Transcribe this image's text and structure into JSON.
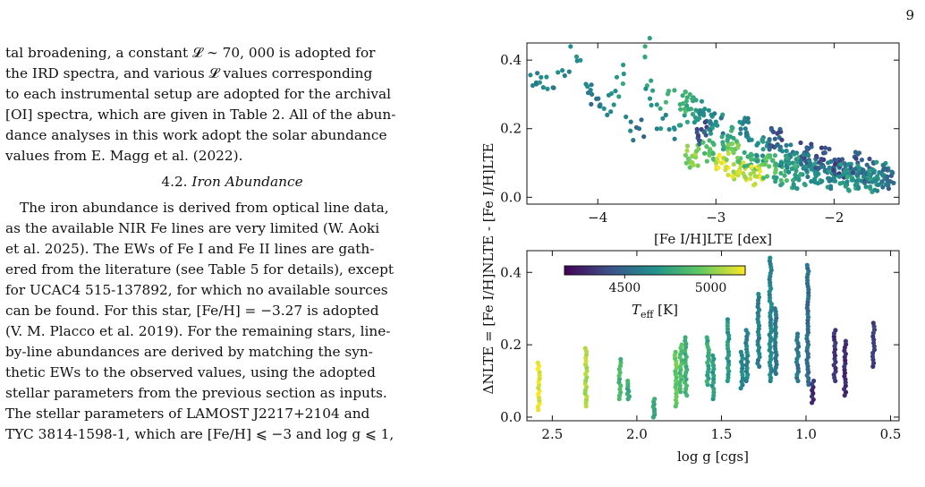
{
  "page_number": "9",
  "text": {
    "p1_lines": [
      "tal broadening, a constant 𝓛 ∼ 70, 000 is adopted for",
      "the IRD spectra, and various 𝓛 values corresponding",
      "to each instrumental setup are adopted for the archival",
      "[OI] spectra, which are given in Table 2. All of the abun-",
      "dance analyses in this work adopt the solar abundance",
      "values from E. Magg et al. (2022)."
    ],
    "section_number": "4.2.",
    "section_title": "Iron Abundance",
    "p2_lines": [
      "The iron abundance is derived from optical line data,",
      "as the available NIR Fe lines are very limited (W. Aoki",
      "et al. 2025). The EWs of Fe I and Fe II lines are gath-",
      "ered from the literature (see Table 5 for details), except",
      "for UCAC4 515-137892, for which no available sources",
      "can be found. For this star, [Fe/H] = −3.27 is adopted",
      "(V. M. Placco et al. 2019). For the remaining stars, line-",
      "by-line abundances are derived by matching the syn-",
      "thetic EWs to the observed values, using the adopted",
      "stellar parameters from the previous section as inputs.",
      "The stellar parameters of LAMOST J2217+2104 and",
      "TYC 3814-1598-1, which are [Fe/H] ⩽ −3 and log g ⩽ 1,"
    ]
  },
  "chart_data": [
    {
      "type": "scatter",
      "title": "",
      "xlabel": "[Fe I/H]LTE [dex]",
      "ylabel": "[Fe I/H]NLTE - [Fe I/H]LTE",
      "xlim": [
        -4.6,
        -1.45
      ],
      "ylim": [
        -0.02,
        0.45
      ],
      "xticks": [
        -4,
        -3,
        -2
      ],
      "xtick_labels": [
        "−4",
        "−3",
        "−2"
      ],
      "yticks": [
        0.0,
        0.2,
        0.4
      ],
      "ytick_labels": [
        "0.0",
        "0.2",
        "0.4"
      ],
      "color_by": "Teff",
      "points": [
        {
          "x": -4.52,
          "y": 0.33,
          "teff": 4620
        },
        {
          "x": -4.48,
          "y": 0.35,
          "teff": 4640
        },
        {
          "x": -4.38,
          "y": 0.32,
          "teff": 4600
        },
        {
          "x": -4.3,
          "y": 0.37,
          "teff": 4650
        },
        {
          "x": -4.18,
          "y": 0.41,
          "teff": 4700
        },
        {
          "x": -4.1,
          "y": 0.33,
          "teff": 4620
        },
        {
          "x": -4.05,
          "y": 0.3,
          "teff": 4580
        },
        {
          "x": -3.98,
          "y": 0.27,
          "teff": 4600
        },
        {
          "x": -3.92,
          "y": 0.24,
          "teff": 4610
        },
        {
          "x": -3.85,
          "y": 0.31,
          "teff": 4650
        },
        {
          "x": -3.78,
          "y": 0.36,
          "teff": 4700
        },
        {
          "x": -3.72,
          "y": 0.22,
          "teff": 4580
        },
        {
          "x": -3.65,
          "y": 0.2,
          "teff": 4560
        },
        {
          "x": -3.6,
          "y": 0.44,
          "teff": 4800
        },
        {
          "x": -3.55,
          "y": 0.34,
          "teff": 4750
        },
        {
          "x": -3.5,
          "y": 0.27,
          "teff": 4700
        },
        {
          "x": -3.45,
          "y": 0.23,
          "teff": 4650
        },
        {
          "x": -3.4,
          "y": 0.31,
          "teff": 4820
        },
        {
          "x": -3.35,
          "y": 0.17,
          "teff": 4600
        },
        {
          "x": -3.3,
          "y": 0.21,
          "teff": 4700
        },
        {
          "x": -3.25,
          "y": 0.28,
          "teff": 4820
        },
        {
          "x": -3.2,
          "y": 0.12,
          "teff": 5000
        },
        {
          "x": -3.15,
          "y": 0.25,
          "teff": 4700
        },
        {
          "x": -3.1,
          "y": 0.19,
          "teff": 4450
        },
        {
          "x": -3.05,
          "y": 0.14,
          "teff": 4900
        },
        {
          "x": -3.0,
          "y": 0.22,
          "teff": 4650
        },
        {
          "x": -2.95,
          "y": 0.1,
          "teff": 5150
        },
        {
          "x": -2.9,
          "y": 0.17,
          "teff": 4800
        },
        {
          "x": -2.85,
          "y": 0.13,
          "teff": 4950
        },
        {
          "x": -2.8,
          "y": 0.08,
          "teff": 5100
        },
        {
          "x": -2.75,
          "y": 0.2,
          "teff": 4600
        },
        {
          "x": -2.7,
          "y": 0.11,
          "teff": 4850
        },
        {
          "x": -2.65,
          "y": 0.06,
          "teff": 5120
        },
        {
          "x": -2.6,
          "y": 0.14,
          "teff": 4700
        },
        {
          "x": -2.55,
          "y": 0.09,
          "teff": 4900
        },
        {
          "x": -2.5,
          "y": 0.17,
          "teff": 4450
        },
        {
          "x": -2.45,
          "y": 0.07,
          "teff": 4800
        },
        {
          "x": -2.4,
          "y": 0.12,
          "teff": 4600
        },
        {
          "x": -2.35,
          "y": 0.1,
          "teff": 4700
        },
        {
          "x": -2.3,
          "y": 0.06,
          "teff": 4750
        },
        {
          "x": -2.25,
          "y": 0.13,
          "teff": 4450
        },
        {
          "x": -2.2,
          "y": 0.09,
          "teff": 4650
        },
        {
          "x": -2.15,
          "y": 0.07,
          "teff": 4700
        },
        {
          "x": -2.1,
          "y": 0.11,
          "teff": 4400
        },
        {
          "x": -2.05,
          "y": 0.08,
          "teff": 4600
        },
        {
          "x": -2.0,
          "y": 0.06,
          "teff": 4650
        },
        {
          "x": -1.95,
          "y": 0.09,
          "teff": 4400
        },
        {
          "x": -1.9,
          "y": 0.07,
          "teff": 4650
        },
        {
          "x": -1.85,
          "y": 0.05,
          "teff": 4700
        },
        {
          "x": -1.8,
          "y": 0.1,
          "teff": 4420
        },
        {
          "x": -1.75,
          "y": 0.06,
          "teff": 4650
        },
        {
          "x": -1.7,
          "y": 0.08,
          "teff": 4450
        },
        {
          "x": -1.65,
          "y": 0.05,
          "teff": 4700
        },
        {
          "x": -1.6,
          "y": 0.07,
          "teff": 4650
        },
        {
          "x": -1.55,
          "y": 0.06,
          "teff": 4500
        }
      ]
    },
    {
      "type": "scatter",
      "title": "",
      "xlabel": "log g [cgs]",
      "ylabel": "ΔNLTE = [Fe I/H]NLTE - [Fe I/H]LTE",
      "xlim": [
        2.65,
        0.45
      ],
      "ylim": [
        -0.01,
        0.46
      ],
      "x_inverted": true,
      "xticks": [
        2.5,
        2.0,
        1.5,
        1.0,
        0.5
      ],
      "xtick_labels": [
        "2.5",
        "2.0",
        "1.5",
        "1.0",
        "0.5"
      ],
      "yticks": [
        0.0,
        0.2,
        0.4
      ],
      "ytick_labels": [
        "0.0",
        "0.2",
        "0.4"
      ],
      "columns": [
        {
          "x": 2.58,
          "ymin": 0.02,
          "ymax": 0.15,
          "teff": 5160
        },
        {
          "x": 2.3,
          "ymin": 0.03,
          "ymax": 0.19,
          "teff": 5080
        },
        {
          "x": 2.1,
          "ymin": 0.05,
          "ymax": 0.16,
          "teff": 4850
        },
        {
          "x": 2.05,
          "ymin": 0.05,
          "ymax": 0.1,
          "teff": 4800
        },
        {
          "x": 1.9,
          "ymin": 0.0,
          "ymax": 0.05,
          "teff": 4800
        },
        {
          "x": 1.77,
          "ymin": 0.03,
          "ymax": 0.18,
          "teff": 4950
        },
        {
          "x": 1.74,
          "ymin": 0.07,
          "ymax": 0.2,
          "teff": 4880
        },
        {
          "x": 1.71,
          "ymin": 0.06,
          "ymax": 0.22,
          "teff": 4820
        },
        {
          "x": 1.58,
          "ymin": 0.09,
          "ymax": 0.22,
          "teff": 4780
        },
        {
          "x": 1.55,
          "ymin": 0.05,
          "ymax": 0.17,
          "teff": 4720
        },
        {
          "x": 1.46,
          "ymin": 0.1,
          "ymax": 0.27,
          "teff": 4700
        },
        {
          "x": 1.38,
          "ymin": 0.08,
          "ymax": 0.18,
          "teff": 4640
        },
        {
          "x": 1.35,
          "ymin": 0.1,
          "ymax": 0.24,
          "teff": 4620
        },
        {
          "x": 1.28,
          "ymin": 0.14,
          "ymax": 0.34,
          "teff": 4600
        },
        {
          "x": 1.21,
          "ymin": 0.1,
          "ymax": 0.44,
          "teff": 4620
        },
        {
          "x": 1.18,
          "ymin": 0.12,
          "ymax": 0.3,
          "teff": 4560
        },
        {
          "x": 1.05,
          "ymin": 0.1,
          "ymax": 0.23,
          "teff": 4560
        },
        {
          "x": 0.99,
          "ymin": 0.09,
          "ymax": 0.42,
          "teff": 4520
        },
        {
          "x": 0.96,
          "ymin": 0.04,
          "ymax": 0.1,
          "teff": 4300
        },
        {
          "x": 0.83,
          "ymin": 0.1,
          "ymax": 0.24,
          "teff": 4300
        },
        {
          "x": 0.77,
          "ymin": 0.06,
          "ymax": 0.21,
          "teff": 4280
        },
        {
          "x": 0.6,
          "ymin": 0.14,
          "ymax": 0.26,
          "teff": 4350
        }
      ]
    }
  ],
  "colorbar": {
    "label": "Teff [K]",
    "label_main": "T",
    "label_sub": "eff",
    "label_unit": " [K]",
    "ticks": [
      4500,
      5000
    ],
    "tick_labels": [
      "4500",
      "5000"
    ],
    "range": [
      4150,
      5200
    ],
    "colormap": [
      "#440154",
      "#3b528b",
      "#21918c",
      "#5ec962",
      "#fde725"
    ]
  }
}
